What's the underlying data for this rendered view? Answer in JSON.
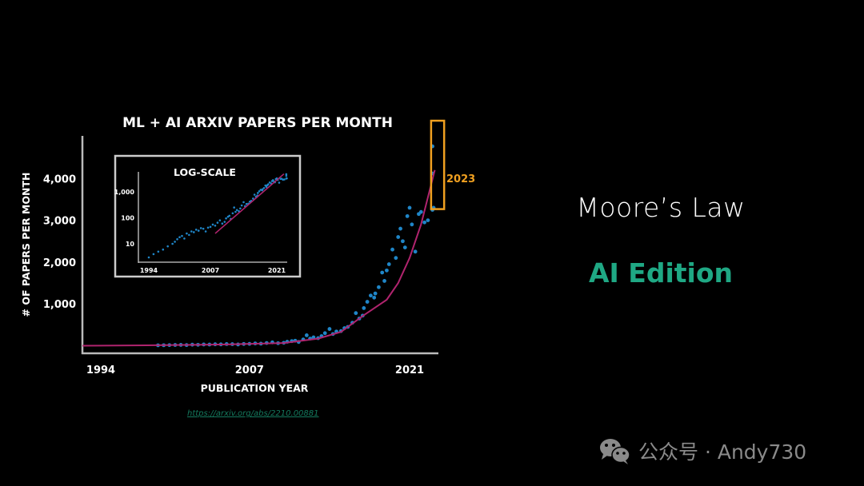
{
  "colors": {
    "background": "#000000",
    "axis": "#bbbbbb",
    "points": "#1f86c8",
    "trend": "#b0246e",
    "highlight": "#f0a020",
    "accent_green": "#1fa884",
    "watermark": "#8a8a8a"
  },
  "chart_data": [
    {
      "type": "scatter",
      "title": "ML + AI ARXIV PAPERS PER MONTH",
      "xlabel": "PUBLICATION YEAR",
      "ylabel": "# OF PAPERS PER MONTH",
      "xticks": [
        "1994",
        "2007",
        "2021"
      ],
      "yticks": [
        "1,000",
        "2,000",
        "3,000",
        "4,000"
      ],
      "ytick_values": [
        1000,
        2000,
        3000,
        4000
      ],
      "xtick_values": [
        1994,
        2007,
        2021
      ],
      "xlim": [
        1992.4,
        2024.6
      ],
      "ylim": [
        0,
        5200
      ],
      "grid": false,
      "highlight": {
        "label": "2023",
        "x_range": [
          2022.6,
          2023.6
        ],
        "y_range": [
          3000,
          5000
        ]
      },
      "series": [
        {
          "kind": "points",
          "points": [
            [
              1994,
              3
            ],
            [
              1995,
              4
            ],
            [
              1996,
              5
            ],
            [
              1997,
              6
            ],
            [
              1998,
              8
            ],
            [
              1999,
              10
            ],
            [
              1999.5,
              12
            ],
            [
              2000,
              15
            ],
            [
              2000.5,
              18
            ],
            [
              2001,
              20
            ],
            [
              2001.5,
              16
            ],
            [
              2002,
              25
            ],
            [
              2002.5,
              22
            ],
            [
              2003,
              30
            ],
            [
              2003.5,
              28
            ],
            [
              2004,
              35
            ],
            [
              2004.5,
              32
            ],
            [
              2005,
              40
            ],
            [
              2005.5,
              38
            ],
            [
              2006,
              30
            ],
            [
              2006.5,
              42
            ],
            [
              2007,
              45
            ],
            [
              2007.5,
              55
            ],
            [
              2008,
              50
            ],
            [
              2008.5,
              65
            ],
            [
              2009,
              80
            ],
            [
              2009.5,
              60
            ],
            [
              2010,
              70
            ],
            [
              2010.3,
              95
            ],
            [
              2010.7,
              110
            ],
            [
              2011,
              120
            ],
            [
              2011.3,
              90
            ],
            [
              2011.7,
              150
            ],
            [
              2012,
              250
            ],
            [
              2012.3,
              170
            ],
            [
              2012.6,
              200
            ],
            [
              2013,
              180
            ],
            [
              2013.3,
              230
            ],
            [
              2013.6,
              300
            ],
            [
              2014,
              400
            ],
            [
              2014.3,
              280
            ],
            [
              2014.6,
              340
            ],
            [
              2015,
              350
            ],
            [
              2015.3,
              420
            ],
            [
              2015.6,
              450
            ],
            [
              2016,
              550
            ],
            [
              2016.3,
              780
            ],
            [
              2016.6,
              650
            ],
            [
              2016.9,
              720
            ],
            [
              2017,
              900
            ],
            [
              2017.3,
              1050
            ],
            [
              2017.6,
              1200
            ],
            [
              2017.9,
              1150
            ],
            [
              2018,
              1250
            ],
            [
              2018.3,
              1400
            ],
            [
              2018.6,
              1750
            ],
            [
              2018.8,
              1550
            ],
            [
              2019,
              1800
            ],
            [
              2019.2,
              1950
            ],
            [
              2019.5,
              2300
            ],
            [
              2019.8,
              2100
            ],
            [
              2020,
              2600
            ],
            [
              2020.2,
              2800
            ],
            [
              2020.4,
              2500
            ],
            [
              2020.6,
              2350
            ],
            [
              2020.8,
              3100
            ],
            [
              2021,
              3300
            ],
            [
              2021.2,
              2900
            ],
            [
              2021.5,
              2250
            ],
            [
              2021.8,
              3150
            ],
            [
              2022,
              3200
            ],
            [
              2022.3,
              2950
            ],
            [
              2022.6,
              3000
            ],
            [
              2023,
              3250
            ],
            [
              2023.1,
              3300
            ],
            [
              2023,
              4120
            ],
            [
              2023,
              4770
            ]
          ]
        },
        {
          "kind": "trend",
          "points": [
            [
              1992.4,
              0
            ],
            [
              1998,
              10
            ],
            [
              2005,
              30
            ],
            [
              2010,
              65
            ],
            [
              2013,
              170
            ],
            [
              2015,
              330
            ],
            [
              2017,
              730
            ],
            [
              2019,
              1100
            ],
            [
              2020,
              1500
            ],
            [
              2021,
              2100
            ],
            [
              2022,
              2900
            ],
            [
              2023.2,
              4200
            ]
          ]
        }
      ]
    },
    {
      "type": "scatter",
      "title": "LOG-SCALE",
      "log_y": true,
      "xticks": [
        "1994",
        "2007",
        "2021"
      ],
      "xtick_values": [
        1994,
        2007,
        2021
      ],
      "yticks": [
        "10",
        "100",
        "1,000"
      ],
      "ytick_values": [
        10,
        100,
        1000
      ],
      "xlim": [
        1991.6,
        2023.5
      ],
      "ylim": [
        2,
        6000
      ],
      "grid": false,
      "series_source": "same points as main chart",
      "trend": [
        [
          2008,
          25
        ],
        [
          2022.5,
          4900
        ]
      ]
    }
  ],
  "side": {
    "title": "Moore’s Law",
    "subtitle": "AI Edition"
  },
  "source_link": "https://arxiv.org/abs/2210.00881",
  "watermark": {
    "icon": "wechat-icon",
    "text": "公众号 · Andy730"
  }
}
